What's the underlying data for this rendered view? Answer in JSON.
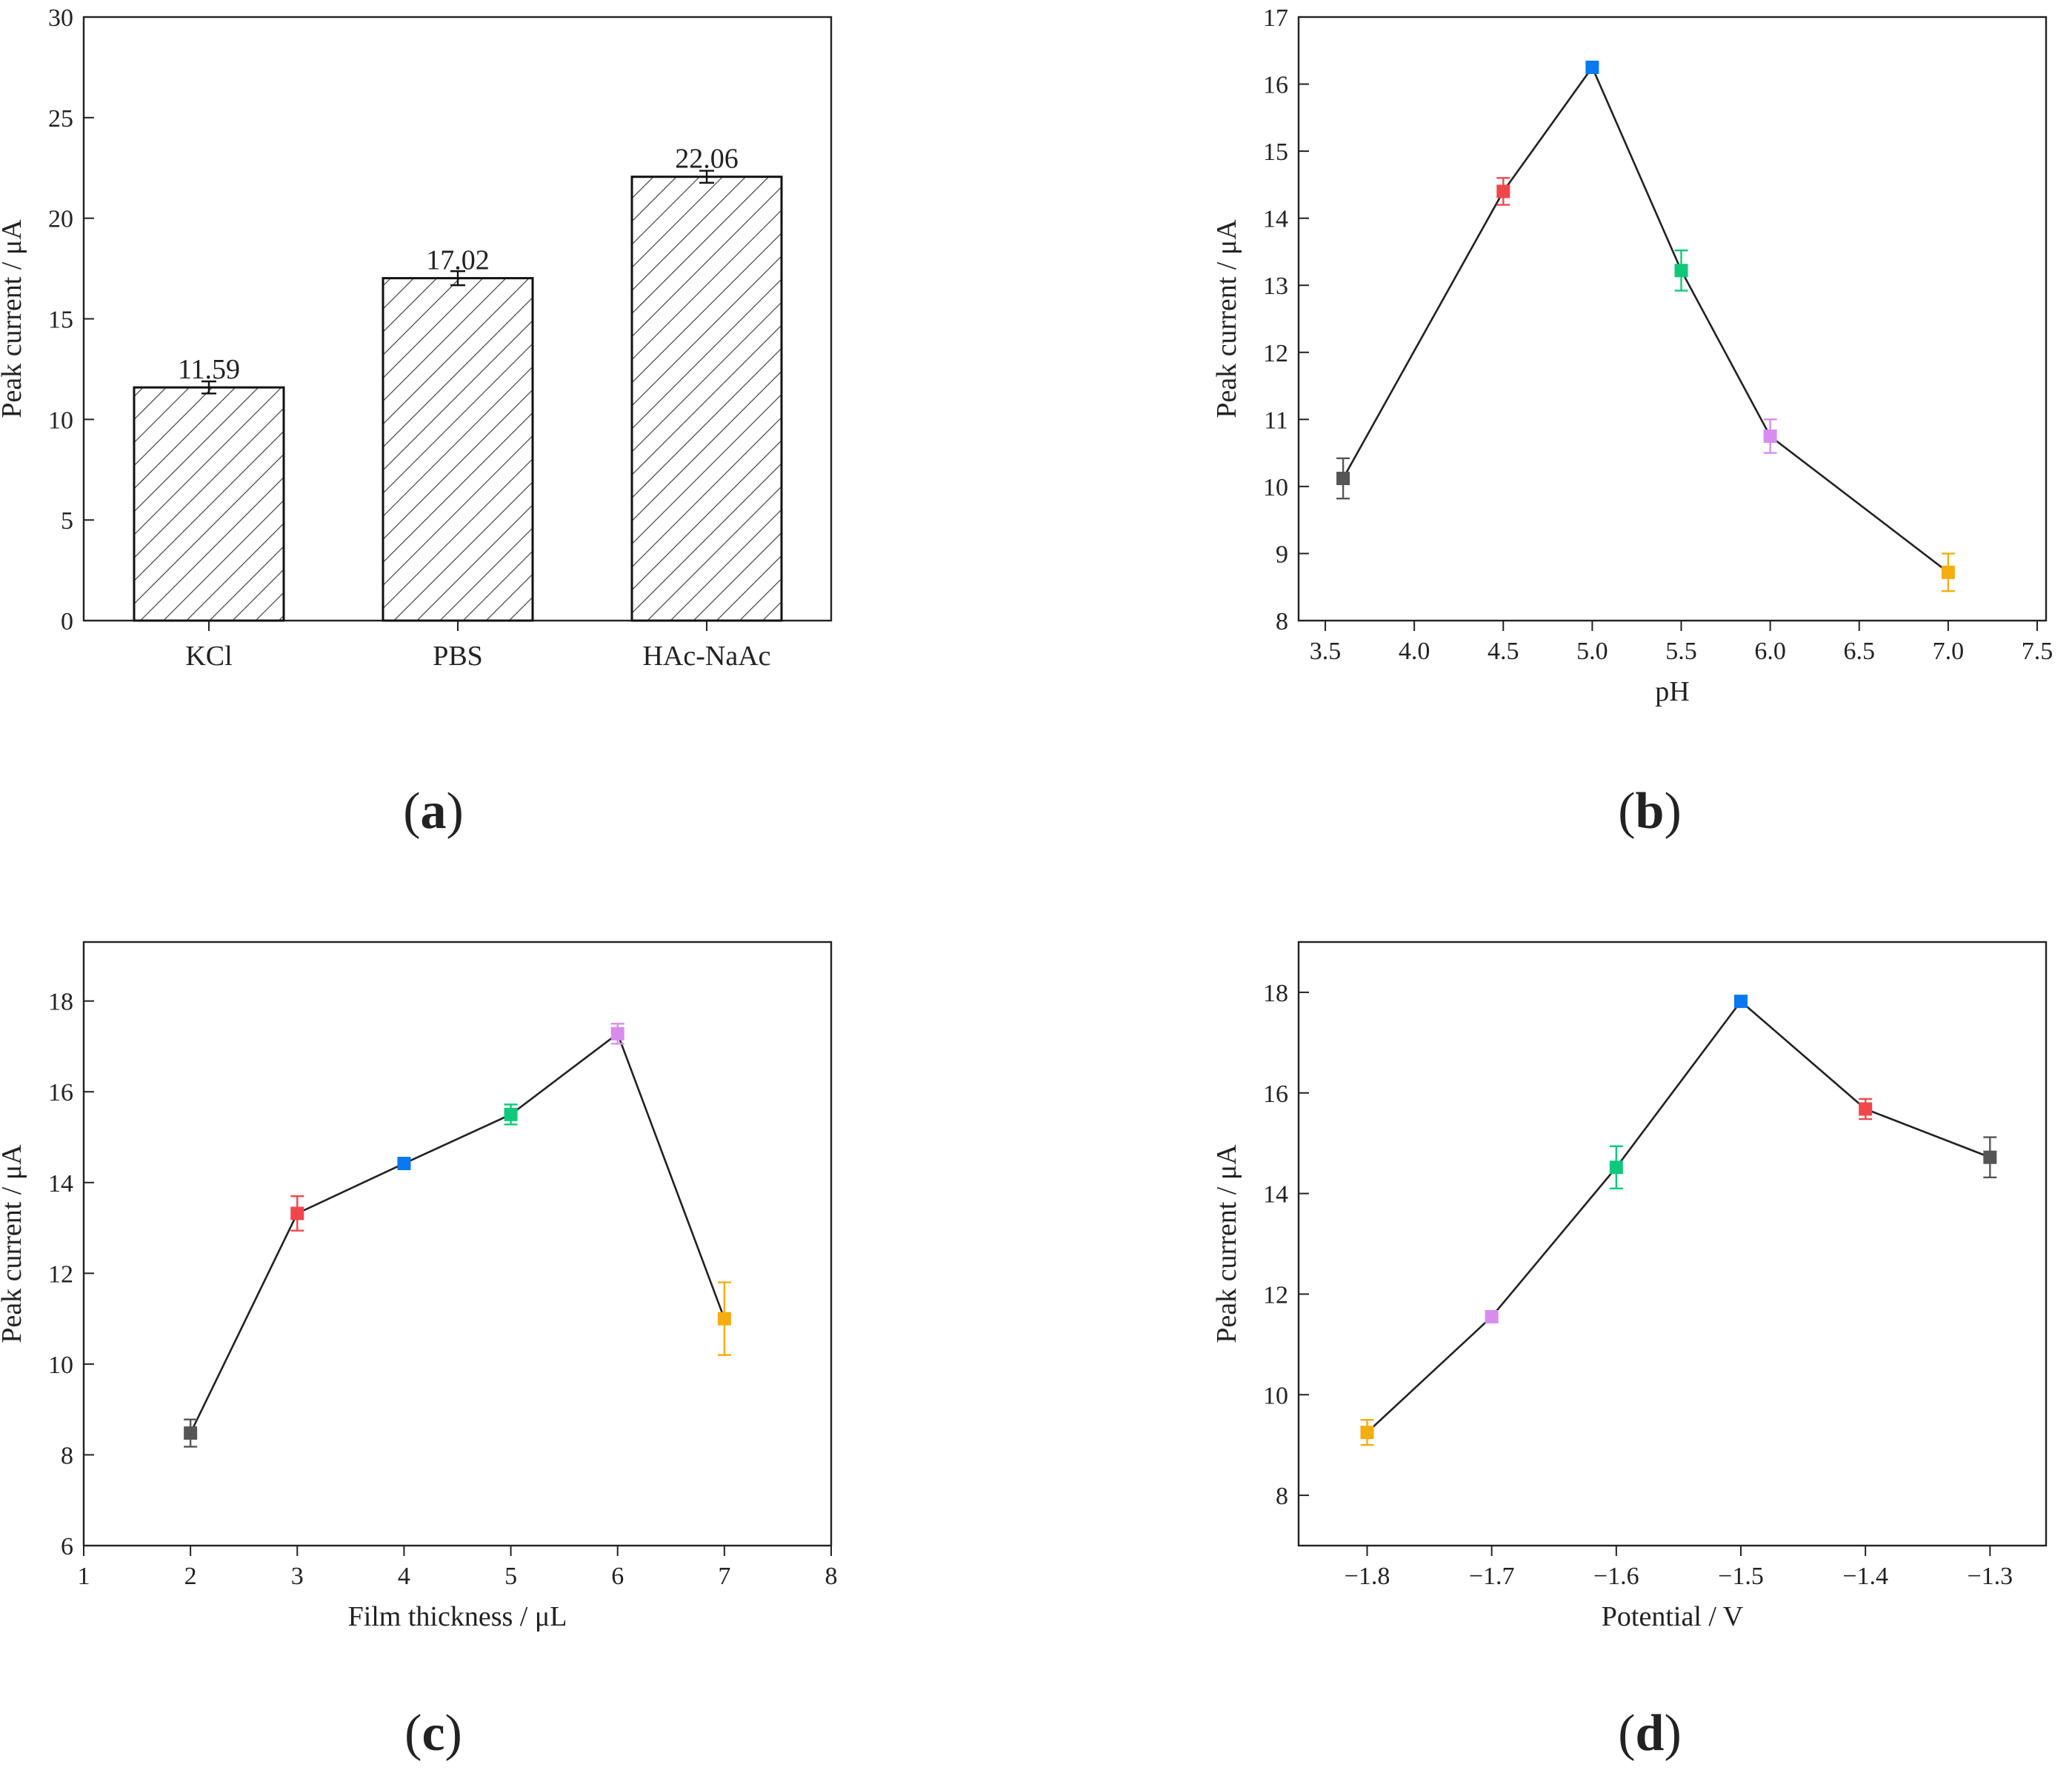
{
  "figure": {
    "panel_labels": [
      "a",
      "b",
      "c",
      "d"
    ]
  },
  "chart_data": [
    {
      "id": "a",
      "type": "bar",
      "title": "",
      "xlabel": "",
      "ylabel": "Peak current / μA",
      "ylim": [
        0,
        30
      ],
      "yticks": [
        0,
        5,
        10,
        15,
        20,
        25,
        30
      ],
      "categories": [
        "KCl",
        "PBS",
        "HAc-NaAc"
      ],
      "values": [
        11.59,
        17.02,
        22.06
      ],
      "value_labels": [
        "11.59",
        "17.02",
        "22.06"
      ],
      "errors": [
        0.3,
        0.35,
        0.3
      ],
      "bar_fill": "hatched",
      "bar_color": "#333333"
    },
    {
      "id": "b",
      "type": "line",
      "title": "",
      "xlabel": "pH",
      "ylabel": "Peak current / μA",
      "xlim": [
        3.35,
        7.55
      ],
      "ylim": [
        8,
        17
      ],
      "xticks": [
        "3.5",
        "4.0",
        "4.5",
        "5.0",
        "5.5",
        "6.0",
        "6.5",
        "7.0",
        "7.5"
      ],
      "yticks": [
        "8",
        "9",
        "10",
        "11",
        "12",
        "13",
        "14",
        "15",
        "16",
        "17"
      ],
      "points": [
        {
          "x": 3.6,
          "y": 10.12,
          "err": 0.3,
          "color": "#555555"
        },
        {
          "x": 4.5,
          "y": 14.4,
          "err": 0.2,
          "color": "#f2464b"
        },
        {
          "x": 5.0,
          "y": 16.25,
          "err": 0.05,
          "color": "#0a78f0"
        },
        {
          "x": 5.5,
          "y": 13.22,
          "err": 0.3,
          "color": "#10c87a"
        },
        {
          "x": 6.0,
          "y": 10.75,
          "err": 0.25,
          "color": "#d98cf0"
        },
        {
          "x": 7.0,
          "y": 8.72,
          "err": 0.28,
          "color": "#f5ad10"
        }
      ]
    },
    {
      "id": "c",
      "type": "line",
      "title": "",
      "xlabel": "Film thickness / μL",
      "ylabel": "Peak current / μA",
      "xlim": [
        1,
        8
      ],
      "ylim": [
        6,
        19.3
      ],
      "xticks": [
        "1",
        "2",
        "3",
        "4",
        "5",
        "6",
        "7",
        "8"
      ],
      "yticks": [
        "6",
        "8",
        "10",
        "12",
        "14",
        "16",
        "18"
      ],
      "points": [
        {
          "x": 2,
          "y": 8.48,
          "err": 0.3,
          "color": "#555555"
        },
        {
          "x": 3,
          "y": 13.32,
          "err": 0.38,
          "color": "#f2464b"
        },
        {
          "x": 4,
          "y": 14.42,
          "err": 0.05,
          "color": "#0a78f0"
        },
        {
          "x": 5,
          "y": 15.5,
          "err": 0.22,
          "color": "#10c87a"
        },
        {
          "x": 6,
          "y": 17.28,
          "err": 0.22,
          "color": "#d98cf0"
        },
        {
          "x": 7,
          "y": 11.0,
          "err": 0.8,
          "color": "#f5ad10"
        }
      ]
    },
    {
      "id": "d",
      "type": "line",
      "title": "",
      "xlabel": "Potential / V",
      "ylabel": "Peak current / μA",
      "xlim": [
        -1.855,
        -1.255
      ],
      "ylim": [
        7,
        19
      ],
      "xticks": [
        "−1.8",
        "−1.7",
        "−1.6",
        "−1.5",
        "−1.4",
        "−1.3"
      ],
      "yticks": [
        "8",
        "10",
        "12",
        "14",
        "16",
        "18"
      ],
      "points": [
        {
          "x": -1.8,
          "y": 9.25,
          "err": 0.25,
          "color": "#f5ad10"
        },
        {
          "x": -1.7,
          "y": 11.55,
          "err": 0.05,
          "color": "#d98cf0"
        },
        {
          "x": -1.6,
          "y": 14.52,
          "err": 0.42,
          "color": "#10c87a"
        },
        {
          "x": -1.5,
          "y": 17.82,
          "err": 0.05,
          "color": "#0a78f0"
        },
        {
          "x": -1.4,
          "y": 15.68,
          "err": 0.2,
          "color": "#f2464b"
        },
        {
          "x": -1.3,
          "y": 14.72,
          "err": 0.4,
          "color": "#555555"
        }
      ]
    }
  ]
}
